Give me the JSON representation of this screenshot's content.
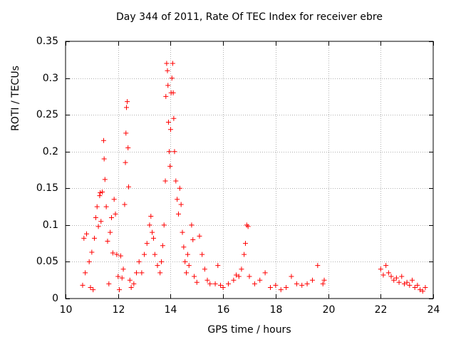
{
  "chart_data": {
    "type": "scatter",
    "title": "Day 344 of 2011, Rate Of TEC Index for receiver ebre",
    "xlabel": "GPS time / hours",
    "ylabel": "ROTI / TECUs",
    "xlim": [
      10,
      24
    ],
    "ylim": [
      0,
      0.35
    ],
    "x_ticks": [
      "10",
      "12",
      "14",
      "16",
      "18",
      "20",
      "22",
      "24"
    ],
    "y_ticks": [
      "0",
      "0.05",
      "0.1",
      "0.15",
      "0.2",
      "0.25",
      "0.3",
      "0.35"
    ],
    "grid": true,
    "marker": "+",
    "color": "#ff0000",
    "series": [
      {
        "name": "ROTI",
        "points": [
          [
            10.65,
            0.018
          ],
          [
            10.7,
            0.082
          ],
          [
            10.75,
            0.035
          ],
          [
            10.8,
            0.088
          ],
          [
            10.9,
            0.05
          ],
          [
            10.95,
            0.015
          ],
          [
            11.0,
            0.063
          ],
          [
            11.05,
            0.012
          ],
          [
            11.1,
            0.082
          ],
          [
            11.15,
            0.11
          ],
          [
            11.2,
            0.125
          ],
          [
            11.25,
            0.098
          ],
          [
            11.3,
            0.14
          ],
          [
            11.32,
            0.144
          ],
          [
            11.35,
            0.105
          ],
          [
            11.4,
            0.145
          ],
          [
            11.45,
            0.215
          ],
          [
            11.47,
            0.19
          ],
          [
            11.5,
            0.162
          ],
          [
            11.55,
            0.125
          ],
          [
            11.6,
            0.078
          ],
          [
            11.65,
            0.02
          ],
          [
            11.7,
            0.09
          ],
          [
            11.75,
            0.11
          ],
          [
            11.8,
            0.062
          ],
          [
            11.85,
            0.135
          ],
          [
            11.9,
            0.115
          ],
          [
            11.95,
            0.06
          ],
          [
            12.0,
            0.03
          ],
          [
            12.05,
            0.012
          ],
          [
            12.1,
            0.058
          ],
          [
            12.15,
            0.028
          ],
          [
            12.2,
            0.04
          ],
          [
            12.25,
            0.128
          ],
          [
            12.28,
            0.185
          ],
          [
            12.3,
            0.225
          ],
          [
            12.32,
            0.26
          ],
          [
            12.35,
            0.268
          ],
          [
            12.38,
            0.205
          ],
          [
            12.4,
            0.152
          ],
          [
            12.45,
            0.025
          ],
          [
            12.5,
            0.015
          ],
          [
            12.6,
            0.02
          ],
          [
            12.7,
            0.035
          ],
          [
            12.8,
            0.05
          ],
          [
            12.9,
            0.035
          ],
          [
            13.0,
            0.06
          ],
          [
            13.1,
            0.075
          ],
          [
            13.2,
            0.1
          ],
          [
            13.25,
            0.112
          ],
          [
            13.3,
            0.09
          ],
          [
            13.35,
            0.082
          ],
          [
            13.4,
            0.06
          ],
          [
            13.5,
            0.045
          ],
          [
            13.6,
            0.035
          ],
          [
            13.65,
            0.05
          ],
          [
            13.7,
            0.072
          ],
          [
            13.75,
            0.1
          ],
          [
            13.8,
            0.16
          ],
          [
            13.82,
            0.275
          ],
          [
            13.85,
            0.32
          ],
          [
            13.88,
            0.31
          ],
          [
            13.9,
            0.29
          ],
          [
            13.92,
            0.24
          ],
          [
            13.95,
            0.2
          ],
          [
            13.98,
            0.18
          ],
          [
            14.0,
            0.23
          ],
          [
            14.02,
            0.28
          ],
          [
            14.05,
            0.3
          ],
          [
            14.08,
            0.32
          ],
          [
            14.1,
            0.28
          ],
          [
            14.12,
            0.245
          ],
          [
            14.15,
            0.2
          ],
          [
            14.2,
            0.16
          ],
          [
            14.25,
            0.135
          ],
          [
            14.3,
            0.115
          ],
          [
            14.35,
            0.15
          ],
          [
            14.4,
            0.128
          ],
          [
            14.45,
            0.09
          ],
          [
            14.5,
            0.07
          ],
          [
            14.55,
            0.05
          ],
          [
            14.6,
            0.035
          ],
          [
            14.65,
            0.06
          ],
          [
            14.7,
            0.045
          ],
          [
            14.8,
            0.1
          ],
          [
            14.85,
            0.08
          ],
          [
            14.9,
            0.03
          ],
          [
            15.0,
            0.022
          ],
          [
            15.1,
            0.085
          ],
          [
            15.2,
            0.06
          ],
          [
            15.3,
            0.04
          ],
          [
            15.4,
            0.025
          ],
          [
            15.5,
            0.02
          ],
          [
            15.7,
            0.02
          ],
          [
            15.8,
            0.045
          ],
          [
            15.9,
            0.018
          ],
          [
            16.0,
            0.015
          ],
          [
            16.2,
            0.02
          ],
          [
            16.4,
            0.025
          ],
          [
            16.5,
            0.032
          ],
          [
            16.6,
            0.03
          ],
          [
            16.7,
            0.04
          ],
          [
            16.8,
            0.06
          ],
          [
            16.85,
            0.075
          ],
          [
            16.9,
            0.1
          ],
          [
            16.95,
            0.098
          ],
          [
            17.0,
            0.03
          ],
          [
            17.2,
            0.02
          ],
          [
            17.4,
            0.025
          ],
          [
            17.6,
            0.035
          ],
          [
            17.8,
            0.015
          ],
          [
            18.0,
            0.018
          ],
          [
            18.2,
            0.012
          ],
          [
            18.4,
            0.015
          ],
          [
            18.6,
            0.03
          ],
          [
            18.8,
            0.02
          ],
          [
            19.0,
            0.018
          ],
          [
            19.2,
            0.02
          ],
          [
            19.4,
            0.025
          ],
          [
            19.6,
            0.045
          ],
          [
            19.8,
            0.02
          ],
          [
            19.85,
            0.025
          ],
          [
            22.0,
            0.04
          ],
          [
            22.1,
            0.032
          ],
          [
            22.2,
            0.045
          ],
          [
            22.3,
            0.035
          ],
          [
            22.4,
            0.03
          ],
          [
            22.5,
            0.025
          ],
          [
            22.6,
            0.028
          ],
          [
            22.7,
            0.022
          ],
          [
            22.8,
            0.03
          ],
          [
            22.9,
            0.02
          ],
          [
            23.0,
            0.022
          ],
          [
            23.1,
            0.018
          ],
          [
            23.2,
            0.025
          ],
          [
            23.3,
            0.015
          ],
          [
            23.4,
            0.018
          ],
          [
            23.5,
            0.012
          ],
          [
            23.6,
            0.01
          ],
          [
            23.7,
            0.015
          ]
        ]
      }
    ]
  }
}
